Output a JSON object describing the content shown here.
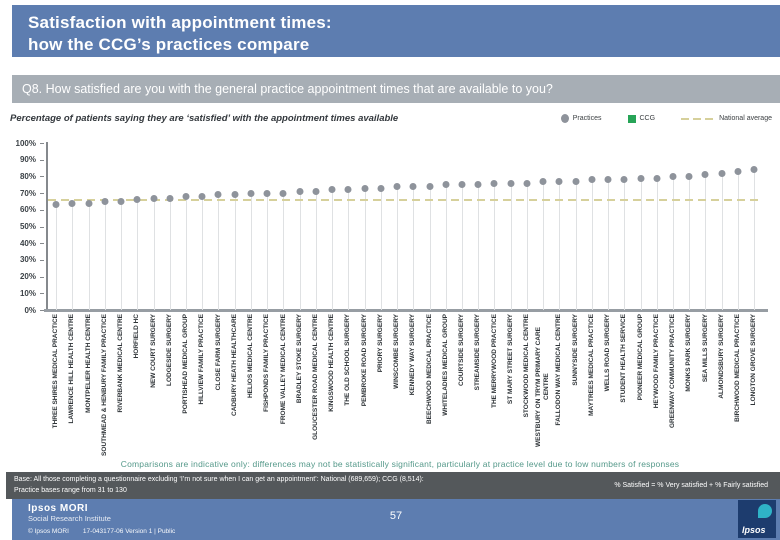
{
  "header": {
    "title_line1": "Satisfaction with appointment times:",
    "title_line2": "how the CCG’s practices compare"
  },
  "question": {
    "label": "Q8. How satisfied are you with the general practice appointment times that are available to you?"
  },
  "chart_data": {
    "type": "scatter",
    "title": "Percentage of patients saying they are ‘satisfied’ with the appointment times available",
    "legend": [
      "Practices",
      "CCG",
      "National average"
    ],
    "legend_position": "top-right",
    "ylim": [
      0,
      100
    ],
    "yticks": [
      "100%",
      "90%",
      "80%",
      "70%",
      "60%",
      "50%",
      "40%",
      "30%",
      "20%",
      "10%",
      "0%"
    ],
    "national_average": 66,
    "grid": "drop-lines",
    "colors": {
      "practices": "#8e939b",
      "ccg": "#27a457",
      "national_average": "#d6d09b"
    },
    "categories": [
      "THREE SHIRES MEDICAL PRACTICE",
      "LAWRENCE HILL HEALTH CENTRE",
      "MONTPELIER HEALTH CENTRE",
      "SOUTHMEAD & HENBURY FAMILY PRACTICE",
      "RIVERBANK MEDICAL CENTRE",
      "HORFIELD HC",
      "NEW COURT SURGERY",
      "LODGESIDE SURGERY",
      "PORTISHEAD MEDICAL GROUP",
      "HILLVIEW FAMILY PRACTICE",
      "CLOSE FARM SURGERY",
      "CADBURY HEATH HEALTHCARE",
      "HELIOS MEDICAL CENTRE",
      "FISHPONDS FAMILY PRACTICE",
      "FROME VALLEY MEDICAL CENTRE",
      "BRADLEY STOKE SURGERY",
      "GLOUCESTER ROAD MEDICAL CENTRE",
      "KINGSWOOD HEALTH CENTRE",
      "THE OLD SCHOOL SURGERY",
      "PEMBROKE ROAD SURGERY",
      "PRIORY SURGERY",
      "WINSCOMBE SURGERY",
      "KENNEDY WAY SURGERY",
      "BEECHWOOD MEDICAL PRACTICE",
      "WHITELADIES MEDICAL GROUP",
      "COURTSIDE SURGERY",
      "STREAMSIDE SURGERY",
      "THE MERRYWOOD PRACTICE",
      "ST MARY STREET SURGERY",
      "STOCKWOOD MEDICAL CENTRE",
      "WESTBURY ON TRYM PRIMARY CARE CENTRE",
      "FALLODON WAY MEDICAL CENTRE",
      "SUNNYSIDE SURGERY",
      "MAYTREES MEDICAL PRACTICE",
      "WELLS ROAD SURGERY",
      "STUDENT HEALTH SERVICE",
      "PIONEER MEDICAL GROUP",
      "HEYWOOD FAMILY PRACTICE",
      "GREENWAY COMMUNITY PRACTICE",
      "MONKS PARK SURGERY",
      "SEA MILLS SURGERY",
      "ALMONDSBURY SURGERY",
      "BIRCHWOOD MEDICAL PRACTICE",
      "LONGTON GROVE SURGERY"
    ],
    "values": [
      63,
      64,
      64,
      65,
      65,
      66,
      67,
      67,
      68,
      68,
      69,
      69,
      70,
      70,
      70,
      71,
      71,
      72,
      72,
      73,
      73,
      74,
      74,
      74,
      75,
      75,
      75,
      76,
      76,
      76,
      77,
      77,
      77,
      78,
      78,
      78,
      79,
      79,
      80,
      80,
      81,
      82,
      83,
      84
    ]
  },
  "footnote": "Comparisons are indicative only: differences may not be statistically significant, particularly at practice level due to low numbers of responses",
  "base_bar": {
    "line1": "Base: All those completing a questionnaire excluding ‘I’m not sure when I can get an appointment’: National (689,659); CCG (8,514):",
    "line2": "Practice bases range from 31 to 130",
    "formula": "% Satisfied = % Very satisfied + % Fairly satisfied"
  },
  "footer": {
    "brand": "Ipsos MORI",
    "brand_sub": "Social Research Institute",
    "copyright": "© Ipsos MORI",
    "doc_ref": "17-043177-06 Version 1 | Public",
    "page_number": "57",
    "logo_text": "Ipsos"
  }
}
